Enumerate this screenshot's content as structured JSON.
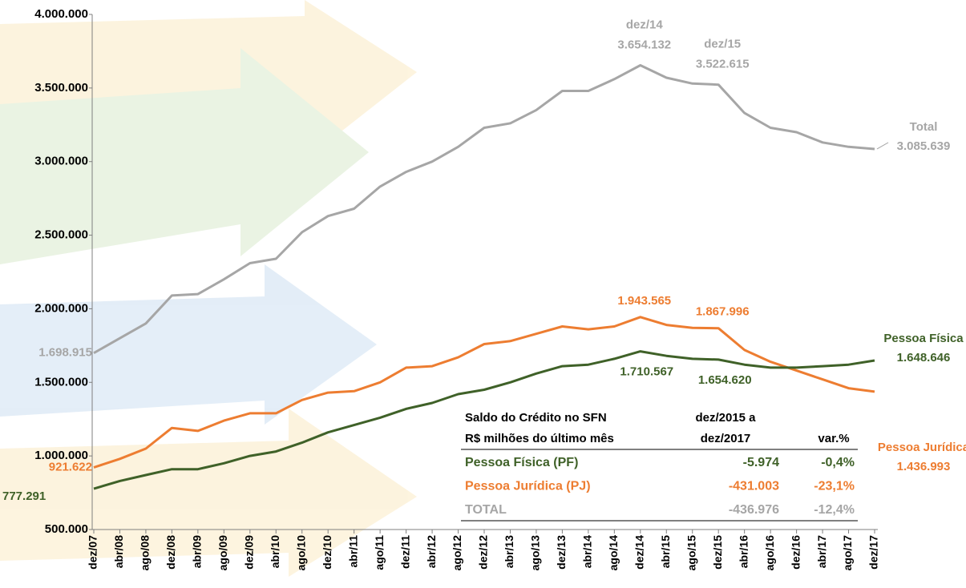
{
  "chart_data": {
    "type": "line",
    "categories": [
      "dez/07",
      "abr/08",
      "ago/08",
      "dez/08",
      "abr/09",
      "ago/09",
      "dez/09",
      "abr/10",
      "ago/10",
      "dez/10",
      "abr/11",
      "ago/11",
      "dez/11",
      "abr/12",
      "ago/12",
      "dez/12",
      "abr/13",
      "ago/13",
      "dez/13",
      "abr/14",
      "ago/14",
      "dez/14",
      "abr/15",
      "ago/15",
      "dez/15",
      "abr/16",
      "ago/16",
      "dez/16",
      "abr/17",
      "ago/17",
      "dez/17"
    ],
    "series": [
      {
        "name": "Total",
        "color": "#a6a6a6",
        "values": [
          1698915,
          1800000,
          1900000,
          2090000,
          2100000,
          2200000,
          2310000,
          2340000,
          2520000,
          2630000,
          2680000,
          2830000,
          2930000,
          3000000,
          3100000,
          3230000,
          3260000,
          3350000,
          3480000,
          3480000,
          3560000,
          3654132,
          3570000,
          3530000,
          3522615,
          3330000,
          3230000,
          3200000,
          3130000,
          3100000,
          3085639
        ],
        "value_labels": [
          "1.698.915",
          null,
          null,
          null,
          null,
          null,
          null,
          null,
          null,
          null,
          null,
          null,
          null,
          null,
          null,
          null,
          null,
          null,
          null,
          null,
          null,
          "3.654.132",
          null,
          null,
          "3.522.615",
          null,
          null,
          null,
          null,
          null,
          "3.085.639"
        ]
      },
      {
        "name": "Pessoa Jurídica",
        "color": "#ed7d31",
        "values": [
          921622,
          980000,
          1050000,
          1190000,
          1170000,
          1240000,
          1290000,
          1290000,
          1380000,
          1430000,
          1440000,
          1500000,
          1600000,
          1610000,
          1670000,
          1760000,
          1780000,
          1830000,
          1880000,
          1860000,
          1880000,
          1943565,
          1890000,
          1870000,
          1867996,
          1720000,
          1640000,
          1580000,
          1520000,
          1460000,
          1436993
        ],
        "value_labels": [
          "921.622",
          null,
          null,
          null,
          null,
          null,
          null,
          null,
          null,
          null,
          null,
          null,
          null,
          null,
          null,
          null,
          null,
          null,
          null,
          null,
          null,
          "1.943.565",
          null,
          null,
          "1.867.996",
          null,
          null,
          null,
          null,
          null,
          "1.436.993"
        ]
      },
      {
        "name": "Pessoa Física",
        "color": "#3f6128",
        "values": [
          777291,
          830000,
          870000,
          910000,
          910000,
          950000,
          1000000,
          1030000,
          1090000,
          1160000,
          1210000,
          1260000,
          1320000,
          1360000,
          1420000,
          1450000,
          1500000,
          1560000,
          1610000,
          1620000,
          1660000,
          1710567,
          1680000,
          1660000,
          1654620,
          1620000,
          1600000,
          1600000,
          1610000,
          1620000,
          1648646
        ],
        "value_labels": [
          "777.291",
          null,
          null,
          null,
          null,
          null,
          null,
          null,
          null,
          null,
          null,
          null,
          null,
          null,
          null,
          null,
          null,
          null,
          null,
          null,
          null,
          "1.710.567",
          null,
          null,
          "1.654.620",
          null,
          null,
          null,
          null,
          null,
          "1.648.646"
        ]
      }
    ],
    "ylim": [
      500000,
      4000000
    ],
    "yticks": [
      {
        "value": 500000,
        "label": "500.000"
      },
      {
        "value": 1000000,
        "label": "1.000.000"
      },
      {
        "value": 1500000,
        "label": "1.500.000"
      },
      {
        "value": 2000000,
        "label": "2.000.000"
      },
      {
        "value": 2500000,
        "label": "2.500.000"
      },
      {
        "value": 3000000,
        "label": "3.000.000"
      },
      {
        "value": 3500000,
        "label": "3.500.000"
      },
      {
        "value": 4000000,
        "label": "4.000.000"
      }
    ],
    "grid": false,
    "table": {
      "title": [
        "Saldo do Crédito no SFN",
        "R$ milhões do último mês"
      ],
      "headers": [
        [
          "dez/2015 a",
          "dez/2017"
        ],
        [
          "var.%"
        ]
      ],
      "rows": [
        {
          "cells": [
            "Pessoa Física (PF)",
            "-5.974",
            "-0,4%"
          ],
          "color": "#3f6128"
        },
        {
          "cells": [
            "Pessoa Jurídica (PJ)",
            "-431.003",
            "-23,1%"
          ],
          "color": "#ed7d31"
        },
        {
          "cells": [
            "TOTAL",
            "-436.976",
            "-12,4%"
          ],
          "color": "#a6a6a6"
        }
      ]
    }
  }
}
